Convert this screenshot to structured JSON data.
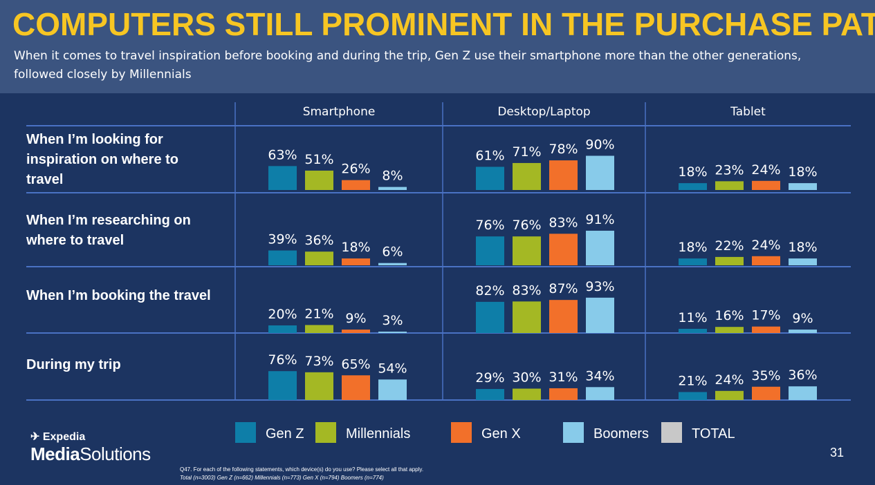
{
  "header": {
    "title": "COMPUTERS STILL PROMINENT IN THE PURCHASE PATH",
    "subtitle": "When it comes to travel inspiration before booking and during the trip, Gen Z use their smartphone more than the other generations, followed closely by Millennials"
  },
  "colors": {
    "background": "#1c3461",
    "header_band": "#3b5480",
    "title": "#f7c623",
    "gen_z": "#0e7ea8",
    "millennials": "#a4b824",
    "gen_x": "#f2702a",
    "boomers": "#88cbea",
    "total": "#c8c8c8"
  },
  "chart_data": {
    "type": "bar",
    "unit": "%",
    "groups": [
      "Smartphone",
      "Desktop/Laptop",
      "Tablet"
    ],
    "categories": [
      "When I’m looking for inspiration on where to travel",
      "When I’m researching on where to travel",
      "When I’m booking the travel",
      "During my trip"
    ],
    "series": [
      {
        "name": "Gen Z",
        "color": "#0e7ea8",
        "values": [
          [
            63,
            61,
            18
          ],
          [
            39,
            76,
            18
          ],
          [
            20,
            82,
            11
          ],
          [
            76,
            29,
            21
          ]
        ]
      },
      {
        "name": "Millennials",
        "color": "#a4b824",
        "values": [
          [
            51,
            71,
            23
          ],
          [
            36,
            76,
            22
          ],
          [
            21,
            83,
            16
          ],
          [
            73,
            30,
            24
          ]
        ]
      },
      {
        "name": "Gen X",
        "color": "#f2702a",
        "values": [
          [
            26,
            78,
            24
          ],
          [
            18,
            83,
            24
          ],
          [
            9,
            87,
            17
          ],
          [
            65,
            31,
            35
          ]
        ]
      },
      {
        "name": "Boomers",
        "color": "#88cbea",
        "values": [
          [
            8,
            90,
            18
          ],
          [
            6,
            91,
            18
          ],
          [
            3,
            93,
            9
          ],
          [
            54,
            34,
            36
          ]
        ]
      }
    ],
    "legend": [
      {
        "name": "Gen Z",
        "color": "#0e7ea8"
      },
      {
        "name": "Millennials",
        "color": "#a4b824"
      },
      {
        "name": "Gen X",
        "color": "#f2702a"
      },
      {
        "name": "Boomers",
        "color": "#88cbea"
      },
      {
        "name": "TOTAL",
        "color": "#c8c8c8"
      }
    ],
    "legend_position": "bottom",
    "ylim": [
      0,
      100
    ]
  },
  "row_labels": [
    "When I’m looking for inspiration on where to travel",
    "When I’m researching on where to travel",
    "When I’m booking the travel",
    "During my trip"
  ],
  "logo": {
    "top": "Expedia",
    "bottom_bold": "Media",
    "bottom_regular": "Solutions"
  },
  "page_number": "31",
  "footnote": {
    "line1": "Q47. For each of the following statements, which device(s) do you use? Please select all that apply.",
    "line2": "Total (n=3003) Gen Z (n=662) Millennials (n=773) Gen X (n=794) Boomers (n=774)"
  }
}
